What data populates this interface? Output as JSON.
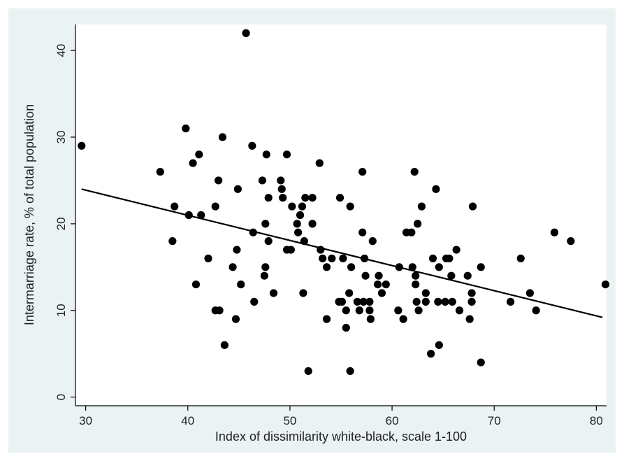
{
  "chart_data": {
    "type": "scatter",
    "title": "",
    "xlabel": "Index of dissimilarity white-black, scale 1-100",
    "ylabel": "Intermarriage rate, % of total population",
    "xlim": [
      29,
      81
    ],
    "ylim": [
      -1,
      43
    ],
    "xticks": [
      30,
      40,
      50,
      60,
      70,
      80
    ],
    "yticks": [
      0,
      10,
      20,
      30,
      40
    ],
    "grid": false,
    "legend": "none",
    "colors": {
      "background": "#eaf2f3",
      "plot_area": "#ffffff",
      "point": "#000000",
      "line": "#000000"
    },
    "fit_line": {
      "x": [
        29.6,
        80.6
      ],
      "y": [
        24.0,
        9.2
      ]
    },
    "series": [
      {
        "points": [
          [
            29.6,
            29
          ],
          [
            37.3,
            26
          ],
          [
            38.7,
            22
          ],
          [
            38.5,
            18
          ],
          [
            39.8,
            31
          ],
          [
            40.1,
            21
          ],
          [
            40.5,
            27
          ],
          [
            40.8,
            13
          ],
          [
            41.1,
            28
          ],
          [
            41.3,
            21
          ],
          [
            42,
            16
          ],
          [
            42.7,
            22
          ],
          [
            42.7,
            10
          ],
          [
            43,
            25
          ],
          [
            43.1,
            10
          ],
          [
            43.4,
            30
          ],
          [
            43.6,
            6
          ],
          [
            44.4,
            15
          ],
          [
            44.7,
            9
          ],
          [
            44.8,
            17
          ],
          [
            44.9,
            24
          ],
          [
            45.2,
            13
          ],
          [
            45.7,
            42
          ],
          [
            46.3,
            29
          ],
          [
            46.4,
            19
          ],
          [
            46.5,
            11
          ],
          [
            47.3,
            25
          ],
          [
            47.5,
            14
          ],
          [
            47.7,
            28
          ],
          [
            47.6,
            15
          ],
          [
            47.6,
            20
          ],
          [
            47.9,
            23
          ],
          [
            47.9,
            18
          ],
          [
            48.4,
            12
          ],
          [
            49.1,
            25
          ],
          [
            49.2,
            24
          ],
          [
            49.3,
            23
          ],
          [
            49.7,
            28
          ],
          [
            49.7,
            17
          ],
          [
            50.1,
            17
          ],
          [
            50.2,
            22
          ],
          [
            50.7,
            20
          ],
          [
            50.8,
            19
          ],
          [
            51,
            21
          ],
          [
            51.2,
            22
          ],
          [
            51.3,
            12
          ],
          [
            51.4,
            18
          ],
          [
            51.5,
            23
          ],
          [
            51.8,
            3
          ],
          [
            52.2,
            23
          ],
          [
            52.2,
            20
          ],
          [
            52.9,
            27
          ],
          [
            53,
            17
          ],
          [
            53.2,
            16
          ],
          [
            53.6,
            15
          ],
          [
            53.6,
            9
          ],
          [
            54.1,
            16
          ],
          [
            54.8,
            11
          ],
          [
            54.9,
            23
          ],
          [
            55.1,
            11
          ],
          [
            55.2,
            16
          ],
          [
            55.5,
            10
          ],
          [
            55.5,
            8
          ],
          [
            55.8,
            12
          ],
          [
            55.9,
            22
          ],
          [
            55.9,
            3
          ],
          [
            56,
            15
          ],
          [
            56.6,
            11
          ],
          [
            56.8,
            10
          ],
          [
            57.1,
            26
          ],
          [
            57.1,
            19
          ],
          [
            57.3,
            16
          ],
          [
            57.2,
            11
          ],
          [
            57.4,
            14
          ],
          [
            57.8,
            11
          ],
          [
            57.8,
            10
          ],
          [
            57.9,
            9
          ],
          [
            58.1,
            18
          ],
          [
            58.6,
            13
          ],
          [
            58.7,
            14
          ],
          [
            59,
            12
          ],
          [
            59.4,
            13
          ],
          [
            60.7,
            15
          ],
          [
            60.6,
            10
          ],
          [
            61.1,
            9
          ],
          [
            61.4,
            19
          ],
          [
            61.9,
            19
          ],
          [
            62,
            15
          ],
          [
            62.2,
            26
          ],
          [
            62.3,
            14
          ],
          [
            62.3,
            13
          ],
          [
            62.4,
            11
          ],
          [
            62.5,
            20
          ],
          [
            62.6,
            10
          ],
          [
            62.9,
            22
          ],
          [
            63.3,
            12
          ],
          [
            63.3,
            11
          ],
          [
            63.8,
            5
          ],
          [
            64,
            16
          ],
          [
            64.3,
            24
          ],
          [
            64.5,
            11
          ],
          [
            64.6,
            15
          ],
          [
            64.6,
            6
          ],
          [
            65.2,
            11
          ],
          [
            65.3,
            16
          ],
          [
            65.6,
            16
          ],
          [
            65.8,
            14
          ],
          [
            65.9,
            11
          ],
          [
            66.3,
            17
          ],
          [
            66.6,
            10
          ],
          [
            67.4,
            14
          ],
          [
            67.6,
            9
          ],
          [
            67.8,
            12
          ],
          [
            67.8,
            11
          ],
          [
            67.9,
            22
          ],
          [
            68.7,
            15
          ],
          [
            68.7,
            4
          ],
          [
            71.6,
            11
          ],
          [
            72.6,
            16
          ],
          [
            73.5,
            12
          ],
          [
            74.1,
            10
          ],
          [
            75.9,
            19
          ],
          [
            77.5,
            18
          ],
          [
            80.9,
            13
          ]
        ]
      }
    ]
  }
}
